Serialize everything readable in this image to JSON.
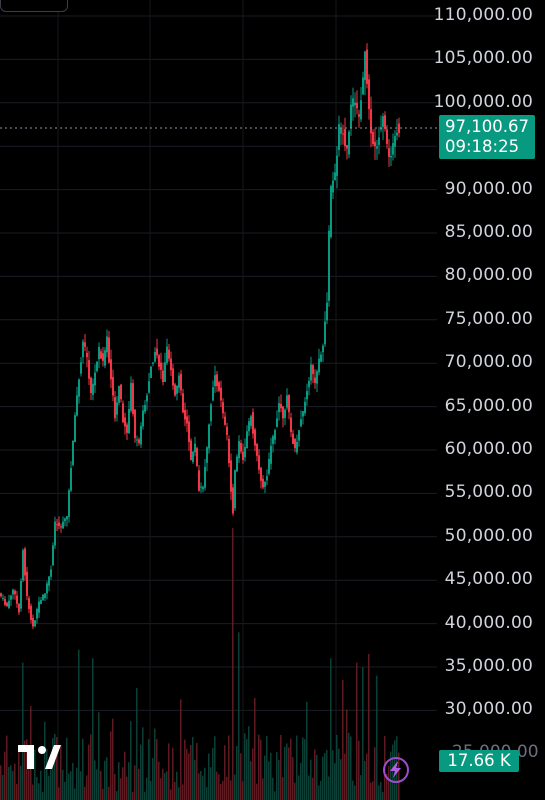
{
  "chart_data": {
    "type": "candlestick",
    "title": "",
    "ylim": [
      26500,
      112000
    ],
    "y_ticks": [
      "110,000.00",
      "105,000.00",
      "100,000.00",
      "95,000.00",
      "90,000.00",
      "85,000.00",
      "80,000.00",
      "75,000.00",
      "70,000.00",
      "65,000.00",
      "60,000.00",
      "55,000.00",
      "50,000.00",
      "45,000.00",
      "40,000.00",
      "35,000.00",
      "30,000.00"
    ],
    "y_tick_values": [
      110000,
      105000,
      100000,
      95000,
      90000,
      85000,
      80000,
      75000,
      70000,
      65000,
      60000,
      55000,
      50000,
      45000,
      40000,
      35000,
      30000
    ],
    "current_price": 97100.67,
    "current_price_label": "97,100.67",
    "countdown_label": "09:18:25",
    "volume_label": "17.66 K",
    "partially_hidden_tick": "25,000.00",
    "grid": true,
    "up_color": "#089981",
    "down_color": "#f23645",
    "price_path": [
      [
        0,
        43500
      ],
      [
        8,
        42000
      ],
      [
        14,
        44000
      ],
      [
        20,
        41500
      ],
      [
        24,
        48500
      ],
      [
        28,
        43000
      ],
      [
        34,
        39500
      ],
      [
        40,
        42500
      ],
      [
        46,
        43500
      ],
      [
        52,
        46500
      ],
      [
        56,
        51500
      ],
      [
        62,
        51000
      ],
      [
        68,
        52500
      ],
      [
        72,
        58000
      ],
      [
        76,
        64000
      ],
      [
        80,
        68500
      ],
      [
        84,
        72500
      ],
      [
        88,
        70500
      ],
      [
        92,
        66500
      ],
      [
        96,
        69000
      ],
      [
        100,
        71500
      ],
      [
        104,
        70000
      ],
      [
        108,
        73000
      ],
      [
        112,
        68000
      ],
      [
        116,
        64000
      ],
      [
        120,
        67500
      ],
      [
        124,
        63500
      ],
      [
        128,
        62000
      ],
      [
        132,
        67500
      ],
      [
        136,
        61500
      ],
      [
        140,
        60500
      ],
      [
        144,
        64500
      ],
      [
        148,
        66500
      ],
      [
        152,
        69500
      ],
      [
        156,
        71500
      ],
      [
        160,
        70000
      ],
      [
        164,
        68000
      ],
      [
        168,
        71500
      ],
      [
        172,
        69000
      ],
      [
        176,
        66500
      ],
      [
        180,
        68500
      ],
      [
        184,
        64500
      ],
      [
        188,
        63000
      ],
      [
        192,
        58500
      ],
      [
        196,
        60500
      ],
      [
        200,
        55500
      ],
      [
        204,
        56000
      ],
      [
        208,
        60500
      ],
      [
        212,
        65500
      ],
      [
        216,
        68500
      ],
      [
        220,
        67000
      ],
      [
        224,
        64000
      ],
      [
        228,
        61500
      ],
      [
        232,
        55500
      ],
      [
        234,
        53000
      ],
      [
        236,
        57500
      ],
      [
        240,
        61000
      ],
      [
        244,
        59000
      ],
      [
        248,
        62000
      ],
      [
        252,
        64000
      ],
      [
        256,
        60500
      ],
      [
        260,
        58000
      ],
      [
        264,
        55500
      ],
      [
        268,
        57000
      ],
      [
        272,
        60500
      ],
      [
        276,
        62500
      ],
      [
        280,
        65500
      ],
      [
        284,
        64000
      ],
      [
        288,
        66000
      ],
      [
        292,
        62000
      ],
      [
        296,
        60000
      ],
      [
        300,
        62500
      ],
      [
        304,
        64500
      ],
      [
        308,
        67000
      ],
      [
        312,
        69500
      ],
      [
        316,
        68000
      ],
      [
        320,
        70500
      ],
      [
        324,
        72000
      ],
      [
        328,
        77000
      ],
      [
        330,
        85000
      ],
      [
        332,
        90000
      ],
      [
        336,
        91500
      ],
      [
        340,
        97000
      ],
      [
        344,
        96500
      ],
      [
        348,
        94500
      ],
      [
        352,
        99500
      ],
      [
        356,
        100500
      ],
      [
        360,
        98000
      ],
      [
        364,
        103000
      ],
      [
        366,
        106500
      ],
      [
        368,
        102500
      ],
      [
        372,
        97000
      ],
      [
        376,
        94500
      ],
      [
        380,
        96500
      ],
      [
        384,
        99000
      ],
      [
        388,
        95000
      ],
      [
        392,
        93500
      ],
      [
        395,
        96500
      ],
      [
        398,
        97100
      ]
    ],
    "volume_spikes": [
      [
        22,
        35500
      ],
      [
        79,
        37000
      ],
      [
        93,
        36000
      ],
      [
        233,
        51000
      ],
      [
        238,
        39000
      ],
      [
        330,
        36000
      ],
      [
        342,
        33500
      ],
      [
        356,
        35500
      ],
      [
        362,
        35000
      ],
      [
        368,
        36500
      ],
      [
        377,
        34000
      ]
    ]
  },
  "controls": {
    "top_button": "",
    "logo_icon": "tradingview-logo-icon",
    "bolt_icon": "bolt-icon"
  }
}
